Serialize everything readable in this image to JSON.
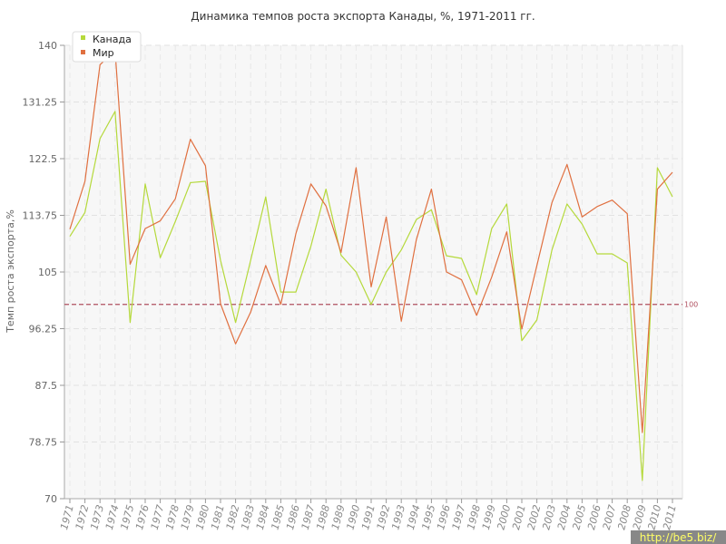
{
  "chart_data": {
    "type": "line",
    "title": "Динамика темпов роста экспорта Канады, %, 1971-2011 гг.",
    "ylabel": "Темп роста экспорта,%",
    "xlabel": "",
    "ylim": [
      70,
      140
    ],
    "yticks": [
      "140",
      "131.25",
      "122.5",
      "113.75",
      "105",
      "96.25",
      "87.5",
      "78.75",
      "70"
    ],
    "x": [
      "1971",
      "1972",
      "1973",
      "1974",
      "1975",
      "1976",
      "1977",
      "1978",
      "1979",
      "1980",
      "1981",
      "1982",
      "1983",
      "1984",
      "1985",
      "1986",
      "1987",
      "1988",
      "1989",
      "1990",
      "1991",
      "1992",
      "1993",
      "1994",
      "1995",
      "1996",
      "1997",
      "1998",
      "1999",
      "2000",
      "2001",
      "2002",
      "2003",
      "2004",
      "2005",
      "2006",
      "2007",
      "2008",
      "2009",
      "2010",
      "2011"
    ],
    "series": [
      {
        "name": "Канада",
        "color": "#b5d93b",
        "values": [
          110.5,
          114.2,
          125.6,
          129.8,
          97.2,
          118.6,
          107.2,
          112.8,
          118.8,
          119.0,
          106.8,
          97.2,
          106.8,
          116.6,
          101.9,
          101.9,
          109.0,
          117.8,
          107.6,
          105.0,
          100.0,
          105.0,
          108.4,
          113.1,
          114.6,
          107.5,
          107.1,
          101.5,
          111.7,
          115.5,
          94.4,
          97.6,
          108.4,
          115.5,
          112.4,
          107.8,
          107.8,
          106.4,
          72.8,
          121.1,
          116.6
        ]
      },
      {
        "name": "Мир",
        "color": "#e07040",
        "values": [
          111.6,
          119.0,
          137.0,
          139.2,
          106.2,
          111.7,
          112.9,
          116.3,
          125.5,
          121.4,
          100.1,
          93.9,
          98.8,
          106.0,
          100.0,
          110.9,
          118.6,
          115.2,
          108.0,
          121.1,
          102.7,
          113.5,
          97.4,
          110.0,
          117.8,
          105.0,
          103.8,
          98.3,
          104.2,
          111.2,
          96.2,
          106.0,
          115.7,
          121.6,
          113.5,
          115.1,
          116.1,
          114.0,
          80.2,
          117.8,
          120.4
        ]
      }
    ],
    "reference_line": {
      "value": 100,
      "label": "100",
      "color": "#b05060"
    },
    "grid": true,
    "legend": "top-left"
  },
  "watermark": "http://be5.biz/"
}
